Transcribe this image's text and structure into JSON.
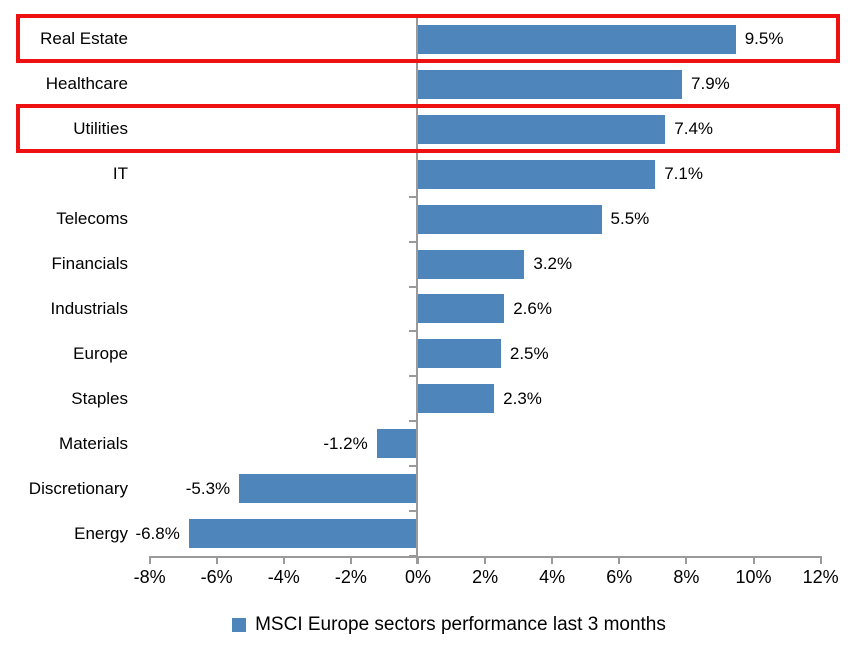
{
  "chart_data": {
    "type": "bar",
    "orientation": "horizontal",
    "title": "",
    "legend": "MSCI Europe sectors performance last 3 months",
    "legend_position": "bottom",
    "categories": [
      "Real Estate",
      "Healthcare",
      "Utilities",
      "IT",
      "Telecoms",
      "Financials",
      "Industrials",
      "Europe",
      "Staples",
      "Materials",
      "Discretionary",
      "Energy"
    ],
    "values": [
      9.5,
      7.9,
      7.4,
      7.1,
      5.5,
      3.2,
      2.6,
      2.5,
      2.3,
      -1.2,
      -5.3,
      -6.8
    ],
    "value_labels": [
      "9.5%",
      "7.9%",
      "7.4%",
      "7.1%",
      "5.5%",
      "3.2%",
      "2.6%",
      "2.5%",
      "2.3%",
      "-1.2%",
      "-5.3%",
      "-6.8%"
    ],
    "x_tick_labels": [
      "-8%",
      "-6%",
      "-4%",
      "-2%",
      "0%",
      "2%",
      "4%",
      "6%",
      "8%",
      "10%",
      "12%"
    ],
    "xlim": [
      -8,
      12
    ],
    "x_tick_step": 2,
    "grid": "off",
    "bar_color": "#4e86bc",
    "axis_color": "#9a9a9a",
    "text_color": "#000000",
    "highlight_box_color": "#ee1111",
    "highlighted_categories": [
      "Real Estate",
      "Utilities"
    ]
  }
}
